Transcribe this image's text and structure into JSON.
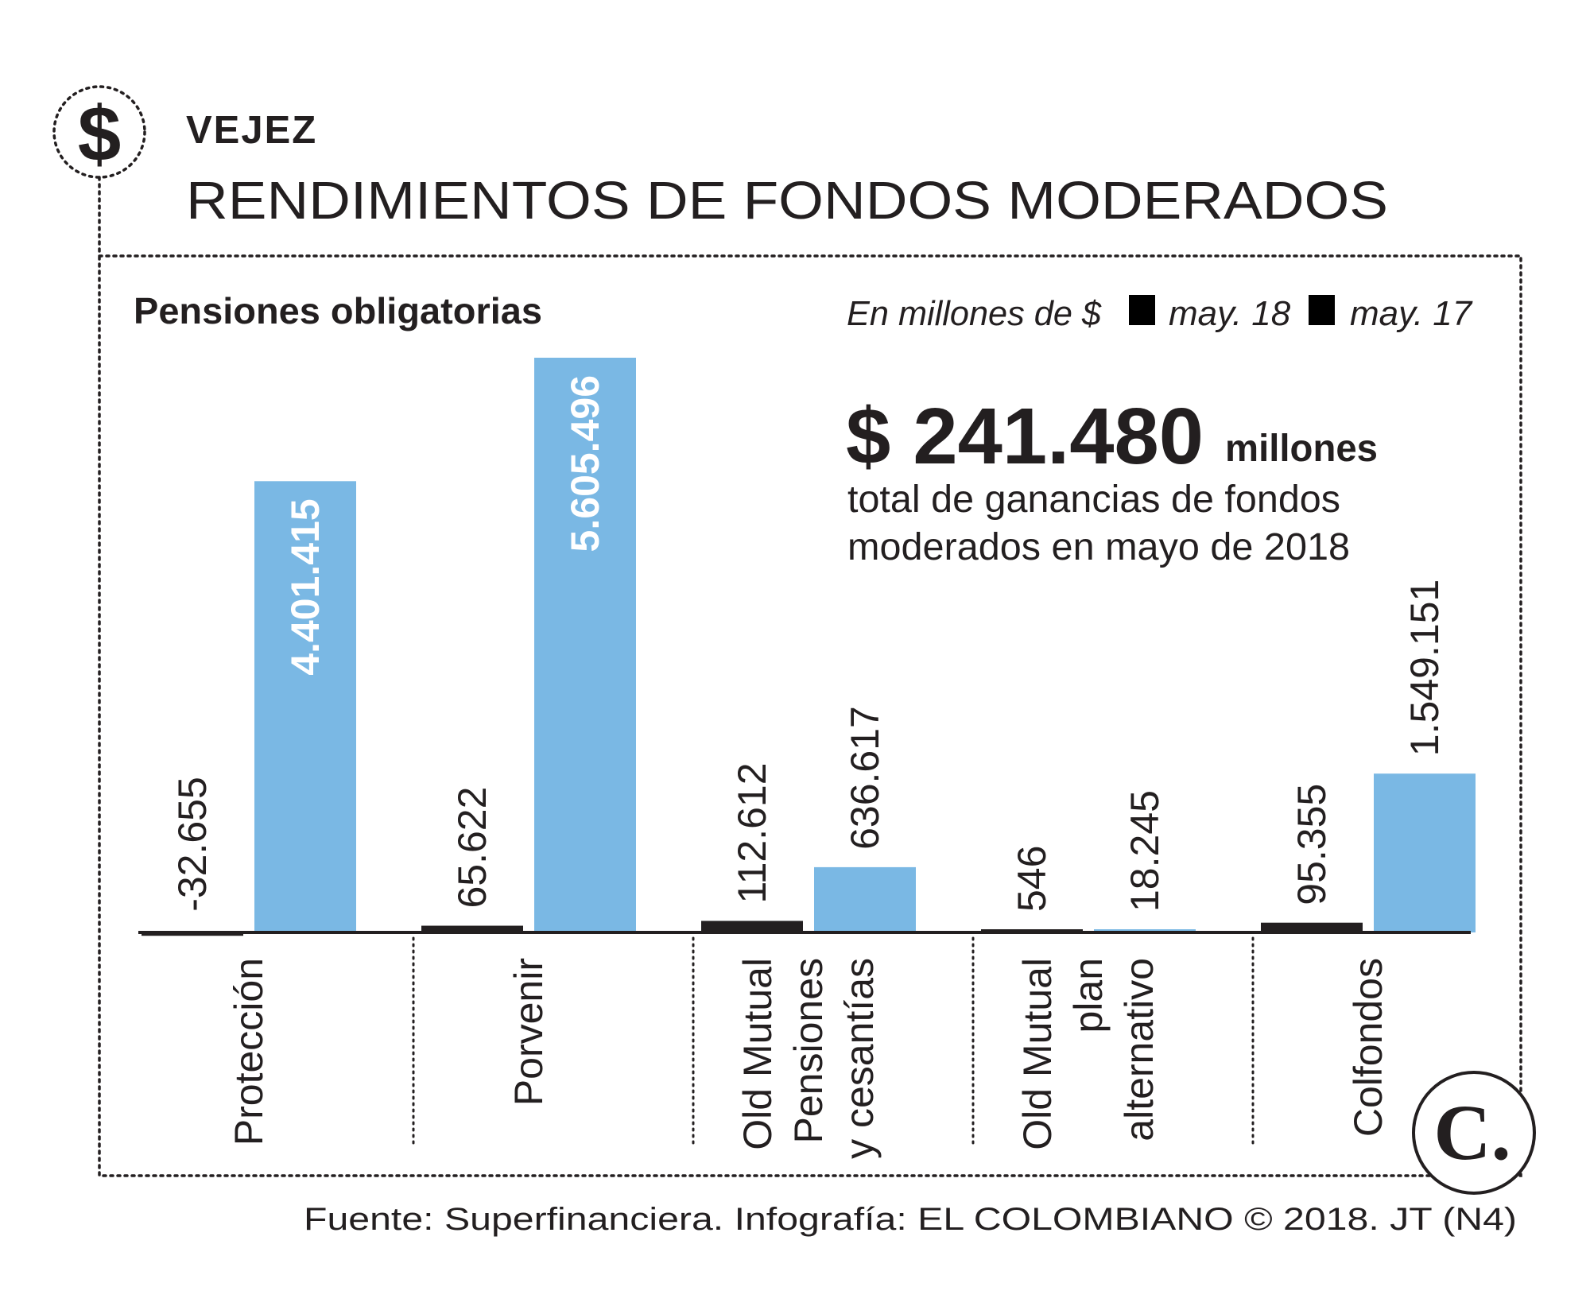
{
  "header": {
    "section": "VEJEZ",
    "title": "RENDIMIENTOS DE FONDOS MODERADOS",
    "icon": "dollar-circle-icon",
    "icon_glyph": "$"
  },
  "panel": {
    "subtitle": "Pensiones obligatorias",
    "units": "En millones de $"
  },
  "highlight": {
    "amount": "$ 241.480",
    "unit": "millones",
    "line1": "total de ganancias de fondos",
    "line2": "moderados en mayo de 2018"
  },
  "footer": {
    "source": "Fuente:  Superfinanciera. Infografía: EL COLOMBIANO © 2018. JT (N4)",
    "logo": "C."
  },
  "colors": {
    "series_may18": "#231f20",
    "series_may17": "#7ab8e4",
    "text": "#231f20"
  },
  "chart_data": {
    "type": "bar",
    "categories": [
      [
        "Protección"
      ],
      [
        "Porvenir"
      ],
      [
        "Old Mutual",
        "Pensiones",
        "y cesantías"
      ],
      [
        "Old Mutual",
        "plan",
        "alternativo"
      ],
      [
        "Colfondos"
      ]
    ],
    "series": [
      {
        "name": "may. 18",
        "values": [
          -32655,
          65622,
          112612,
          546,
          95355
        ],
        "labels": [
          "-32.655",
          "65.622",
          "112.612",
          "546",
          "95.355"
        ]
      },
      {
        "name": "may. 17",
        "values": [
          4401415,
          5605496,
          636617,
          18245,
          1549151
        ],
        "labels": [
          "4.401.415",
          "5.605.496",
          "636.617",
          "18.245",
          "1.549.151"
        ]
      }
    ],
    "ylim": [
      -32655,
      5605496
    ],
    "legend": "top-right",
    "grid": false
  }
}
